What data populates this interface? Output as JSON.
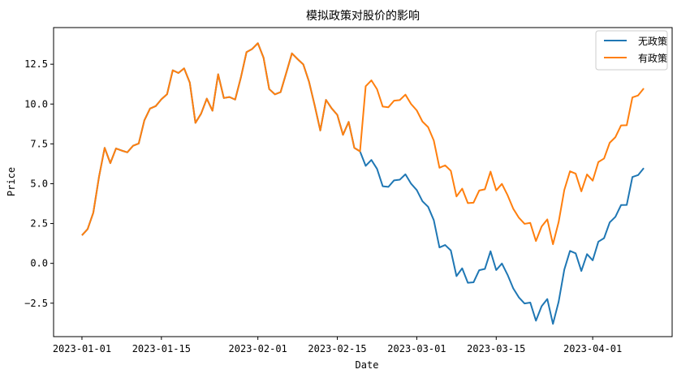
{
  "chart_data": {
    "type": "line",
    "title": "模拟政策对股价的影响",
    "xlabel": "Date",
    "ylabel": "Price",
    "x_start": "2023-01-01",
    "x_end": "2023-04-10",
    "xlim": [
      "2022-12-27",
      "2023-04-15"
    ],
    "ylim": [
      -4.6,
      14.8
    ],
    "x_ticks": [
      "2023-01-01",
      "2023-01-15",
      "2023-02-01",
      "2023-02-15",
      "2023-03-01",
      "2023-03-15",
      "2023-04-01"
    ],
    "x_tick_labels": [
      "2023-01-01",
      "2023-01-15",
      "2023-02-01",
      "2023-02-15",
      "2023-03-01",
      "2023-03-15",
      "2023-04-01"
    ],
    "y_ticks": [
      -2.5,
      0.0,
      2.5,
      5.0,
      7.5,
      10.0,
      12.5
    ],
    "y_tick_labels": [
      "−2.5",
      "0.0",
      "2.5",
      "5.0",
      "7.5",
      "10.0",
      "12.5"
    ],
    "grid": false,
    "legend_position": "top-right",
    "series": [
      {
        "name": "无政策",
        "color": "#1f77b4",
        "values": [
          1.76,
          2.15,
          3.18,
          5.42,
          7.25,
          6.29,
          7.21,
          7.08,
          6.97,
          7.38,
          7.52,
          8.98,
          9.72,
          9.87,
          10.3,
          10.62,
          12.12,
          11.95,
          12.24,
          11.35,
          8.82,
          9.4,
          10.34,
          9.58,
          11.87,
          10.38,
          10.44,
          10.28,
          11.66,
          13.26,
          13.46,
          13.82,
          12.91,
          10.94,
          10.61,
          10.75,
          11.95,
          13.18,
          12.82,
          12.49,
          11.42,
          9.93,
          8.34,
          10.26,
          9.73,
          9.32,
          8.07,
          8.88,
          7.25,
          7.03,
          6.12,
          6.49,
          5.93,
          4.84,
          4.8,
          5.21,
          5.25,
          5.59,
          5.0,
          4.6,
          3.9,
          3.55,
          2.71,
          1.0,
          1.15,
          0.81,
          -0.8,
          -0.31,
          -1.22,
          -1.19,
          -0.43,
          -0.35,
          0.76,
          -0.42,
          -0.01,
          -0.72,
          -1.57,
          -2.14,
          -2.52,
          -2.46,
          -3.6,
          -2.69,
          -2.24,
          -3.8,
          -2.41,
          -0.39,
          0.78,
          0.63,
          -0.48,
          0.58,
          0.19,
          1.36,
          1.58,
          2.57,
          2.92,
          3.66,
          3.67,
          5.42,
          5.54,
          5.98
        ]
      },
      {
        "name": "有政策",
        "color": "#ff7f0e",
        "values": [
          1.76,
          2.15,
          3.18,
          5.42,
          7.25,
          6.29,
          7.21,
          7.08,
          6.97,
          7.38,
          7.52,
          8.98,
          9.72,
          9.87,
          10.3,
          10.62,
          12.12,
          11.95,
          12.24,
          11.35,
          8.82,
          9.4,
          10.34,
          9.58,
          11.87,
          10.38,
          10.44,
          10.28,
          11.66,
          13.26,
          13.46,
          13.82,
          12.91,
          10.94,
          10.61,
          10.75,
          11.95,
          13.18,
          12.82,
          12.49,
          11.42,
          9.93,
          8.34,
          10.26,
          9.73,
          9.32,
          8.07,
          8.88,
          7.25,
          7.03,
          11.12,
          11.49,
          10.93,
          9.84,
          9.8,
          10.21,
          10.25,
          10.59,
          10.0,
          9.6,
          8.9,
          8.55,
          7.71,
          6.0,
          6.15,
          5.81,
          4.2,
          4.69,
          3.78,
          3.81,
          4.57,
          4.65,
          5.76,
          4.58,
          4.99,
          4.28,
          3.43,
          2.86,
          2.48,
          2.54,
          1.4,
          2.31,
          2.76,
          1.2,
          2.59,
          4.61,
          5.78,
          5.63,
          4.52,
          5.58,
          5.19,
          6.36,
          6.58,
          7.57,
          7.92,
          8.66,
          8.67,
          10.42,
          10.54,
          10.98
        ]
      }
    ]
  }
}
